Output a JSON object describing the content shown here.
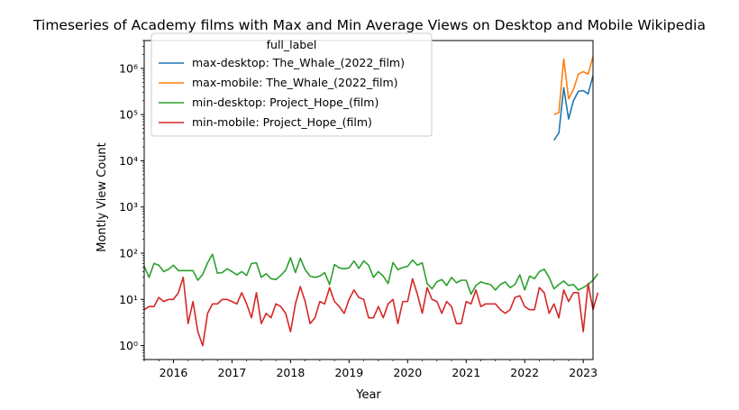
{
  "chart_data": {
    "type": "line",
    "title": "Timeseries of Academy films with Max and Min Average Views on Desktop and Mobile Wikipedia",
    "xlabel": "Year",
    "ylabel": "Montly View Count",
    "x_range": [
      "2015-07",
      "2023-03"
    ],
    "y_scale": "log",
    "ylim": [
      0.5,
      4000000
    ],
    "y_ticks": [
      {
        "value": 1,
        "label": "10⁰"
      },
      {
        "value": 10,
        "label": "10¹"
      },
      {
        "value": 100,
        "label": "10²"
      },
      {
        "value": 1000,
        "label": "10³"
      },
      {
        "value": 10000,
        "label": "10⁴"
      },
      {
        "value": 100000,
        "label": "10⁵"
      },
      {
        "value": 1000000,
        "label": "10⁶"
      }
    ],
    "x_ticks": [
      {
        "value": "2016-01",
        "label": "2016"
      },
      {
        "value": "2017-01",
        "label": "2017"
      },
      {
        "value": "2018-01",
        "label": "2018"
      },
      {
        "value": "2019-01",
        "label": "2019"
      },
      {
        "value": "2020-01",
        "label": "2020"
      },
      {
        "value": "2021-01",
        "label": "2021"
      },
      {
        "value": "2022-01",
        "label": "2022"
      },
      {
        "value": "2023-01",
        "label": "2023"
      }
    ],
    "grid": false,
    "legend": {
      "title": "full_label",
      "placement": "upper-left"
    },
    "series": [
      {
        "name": "max-desktop: The_Whale_(2022_film)",
        "color": "#1f77b4",
        "start": "2022-07",
        "values": [
          28000,
          40000,
          380000,
          80000,
          200000,
          320000,
          330000,
          280000,
          700000
        ]
      },
      {
        "name": "max-mobile: The_Whale_(2022_film)",
        "color": "#ff7f0e",
        "start": "2022-07",
        "values": [
          100000,
          110000,
          1600000,
          220000,
          350000,
          750000,
          850000,
          750000,
          1800000
        ]
      },
      {
        "name": "min-desktop: Project_Hope_(film)",
        "color": "#2ca02c",
        "start": "2015-07",
        "values": [
          52,
          30,
          60,
          55,
          40,
          45,
          55,
          42,
          42,
          42,
          42,
          26,
          35,
          62,
          95,
          37,
          38,
          46,
          40,
          34,
          40,
          33,
          60,
          62,
          30,
          36,
          28,
          27,
          33,
          43,
          80,
          38,
          78,
          44,
          32,
          30,
          32,
          38,
          21,
          57,
          48,
          46,
          48,
          68,
          47,
          68,
          55,
          30,
          40,
          32,
          22,
          63,
          44,
          49,
          52,
          71,
          55,
          62,
          22,
          17,
          24,
          27,
          20,
          30,
          23,
          26,
          26,
          13,
          20,
          24,
          22,
          21,
          16,
          21,
          24,
          18,
          21,
          34,
          16,
          32,
          28,
          40,
          45,
          30,
          17,
          21,
          25,
          20,
          21,
          16,
          18,
          21,
          26,
          36
        ]
      },
      {
        "name": "min-mobile: Project_Hope_(film)",
        "color": "#d62728",
        "start": "2015-07",
        "values": [
          6,
          7,
          7,
          11,
          9,
          10,
          10,
          14,
          30,
          3,
          9,
          2,
          1,
          5,
          8,
          8,
          10,
          10,
          9,
          8,
          14,
          8,
          4,
          14,
          3,
          5,
          4,
          8,
          7,
          5,
          2,
          8,
          19,
          9,
          3,
          4,
          9,
          8,
          18,
          9,
          7,
          5,
          10,
          16,
          11,
          10,
          4,
          4,
          7,
          4,
          8,
          10,
          3,
          9,
          9,
          28,
          13,
          5,
          18,
          10,
          9,
          5,
          9,
          7,
          3,
          3,
          9,
          8,
          16,
          7,
          8,
          8,
          8,
          6,
          5,
          6,
          11,
          12,
          7,
          6,
          6,
          18,
          14,
          5,
          8,
          4,
          16,
          9,
          14,
          14,
          2,
          22,
          6,
          14
        ]
      }
    ]
  }
}
